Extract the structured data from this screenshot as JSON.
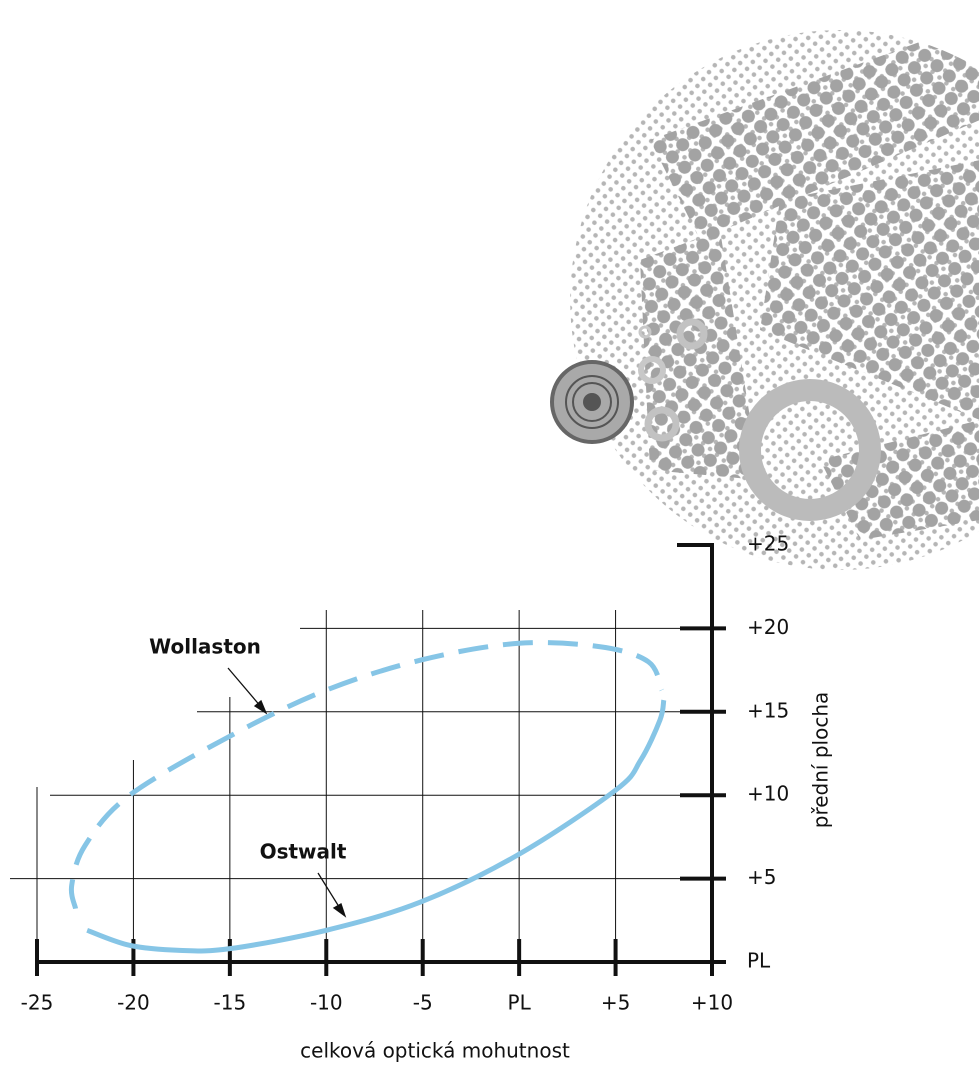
{
  "chart_data": {
    "type": "line",
    "x_label": "celková optická mohutnost",
    "y_label": "přední plocha",
    "xlim": [
      -25,
      10
    ],
    "ylim": [
      0,
      25
    ],
    "xticks": [
      -25,
      -20,
      -15,
      -10,
      -5,
      {
        "value": 0,
        "label": "PL"
      },
      {
        "value": 5,
        "label": "+5"
      },
      {
        "value": 10,
        "label": "+10"
      }
    ],
    "yticks": [
      {
        "value": 0,
        "label": "PL"
      },
      {
        "value": 5,
        "label": "+5"
      },
      {
        "value": 10,
        "label": "+10"
      },
      {
        "value": 15,
        "label": "+15"
      },
      {
        "value": 20,
        "label": "+20"
      },
      {
        "value": 25,
        "label": "+25"
      }
    ],
    "grid": true,
    "series": [
      {
        "name": "Ostwalt",
        "color": "#86c5e6",
        "dashed": false,
        "x": [
          -22.4,
          -20.2,
          -17.6,
          -15,
          -10,
          -5.1,
          -0.1,
          5,
          6.3,
          7.3,
          7.5
        ],
        "values": [
          1.9,
          1,
          0.7,
          0.8,
          1.9,
          3.6,
          6.4,
          10.3,
          12.1,
          14.5,
          15.7
        ]
      },
      {
        "name": "Wollaston",
        "color": "#86c5e6",
        "dashed": true,
        "x": [
          -23,
          -23.2,
          -22.5,
          -20.2,
          -14.9,
          -10,
          -5.1,
          -0.1,
          4.2,
          6.7,
          7.4
        ],
        "values": [
          3.2,
          4.6,
          7,
          10,
          13.6,
          16.3,
          18.1,
          19.1,
          18.9,
          18,
          16.3
        ]
      }
    ]
  }
}
